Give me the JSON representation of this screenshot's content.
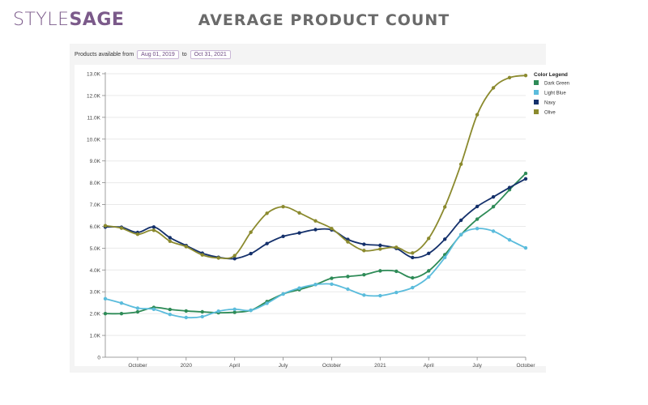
{
  "brand": {
    "logo_part1": "STYLE",
    "logo_part2": "SAGE",
    "color": "#7b5a8a"
  },
  "page_title": "AVERAGE PRODUCT COUNT",
  "date_filter": {
    "label": "Products available from",
    "start": "Aug 01, 2019",
    "separator": "to",
    "end": "Oct 31, 2021"
  },
  "chart_data": {
    "type": "line",
    "title": "",
    "xlabel": "",
    "ylabel": "",
    "ylim": [
      0,
      13000
    ],
    "y_ticks": [
      {
        "value": 0,
        "label": "0"
      },
      {
        "value": 1000,
        "label": "1.0K"
      },
      {
        "value": 2000,
        "label": "2.0K"
      },
      {
        "value": 3000,
        "label": "3.0K"
      },
      {
        "value": 4000,
        "label": "4.0K"
      },
      {
        "value": 5000,
        "label": "5.0K"
      },
      {
        "value": 6000,
        "label": "6.0K"
      },
      {
        "value": 7000,
        "label": "7.0K"
      },
      {
        "value": 8000,
        "label": "8.0K"
      },
      {
        "value": 9000,
        "label": "9.0K"
      },
      {
        "value": 10000,
        "label": "10.0K"
      },
      {
        "value": 11000,
        "label": "11.0K"
      },
      {
        "value": 12000,
        "label": "12.0K"
      },
      {
        "value": 13000,
        "label": "13.0K"
      }
    ],
    "x": [
      "2019-08",
      "2019-09",
      "2019-10",
      "2019-11",
      "2019-12",
      "2020-01",
      "2020-02",
      "2020-03",
      "2020-04",
      "2020-05",
      "2020-06",
      "2020-07",
      "2020-08",
      "2020-09",
      "2020-10",
      "2020-11",
      "2020-12",
      "2021-01",
      "2021-02",
      "2021-03",
      "2021-04",
      "2021-05",
      "2021-06",
      "2021-07",
      "2021-08",
      "2021-09",
      "2021-10"
    ],
    "x_ticks": [
      {
        "x": "2019-10",
        "label": "October"
      },
      {
        "x": "2020-01",
        "label": "2020"
      },
      {
        "x": "2020-04",
        "label": "April"
      },
      {
        "x": "2020-07",
        "label": "July"
      },
      {
        "x": "2020-10",
        "label": "October"
      },
      {
        "x": "2021-01",
        "label": "2021"
      },
      {
        "x": "2021-04",
        "label": "April"
      },
      {
        "x": "2021-07",
        "label": "July"
      },
      {
        "x": "2021-10",
        "label": "October"
      }
    ],
    "grid": true,
    "legend_title": "Color Legend",
    "legend_position": "top-right",
    "series": [
      {
        "name": "Dark Green",
        "color": "#2e8b57",
        "values": [
          2000,
          2000,
          2080,
          2280,
          2190,
          2120,
          2080,
          2040,
          2060,
          2150,
          2550,
          2900,
          3100,
          3330,
          3620,
          3700,
          3780,
          3960,
          3940,
          3640,
          3960,
          4700,
          5620,
          6330,
          6900,
          7680,
          8430
        ]
      },
      {
        "name": "Light Blue",
        "color": "#5bbcdc",
        "values": [
          2680,
          2480,
          2250,
          2200,
          1960,
          1820,
          1860,
          2110,
          2200,
          2150,
          2470,
          2900,
          3170,
          3330,
          3350,
          3120,
          2850,
          2820,
          2970,
          3190,
          3680,
          4570,
          5620,
          5900,
          5780,
          5380,
          5010
        ]
      },
      {
        "name": "Navy",
        "color": "#14306b",
        "values": [
          5970,
          5960,
          5720,
          5970,
          5480,
          5120,
          4770,
          4580,
          4520,
          4750,
          5210,
          5540,
          5700,
          5850,
          5840,
          5400,
          5180,
          5130,
          4990,
          4570,
          4760,
          5410,
          6280,
          6910,
          7350,
          7780,
          8180
        ]
      },
      {
        "name": "Olive",
        "color": "#8b8a2e",
        "values": [
          6030,
          5920,
          5640,
          5820,
          5320,
          5070,
          4690,
          4550,
          4660,
          5730,
          6600,
          6900,
          6620,
          6250,
          5900,
          5290,
          4890,
          4960,
          5040,
          4780,
          5450,
          6890,
          8850,
          11120,
          12350,
          12820,
          12920
        ]
      }
    ]
  }
}
